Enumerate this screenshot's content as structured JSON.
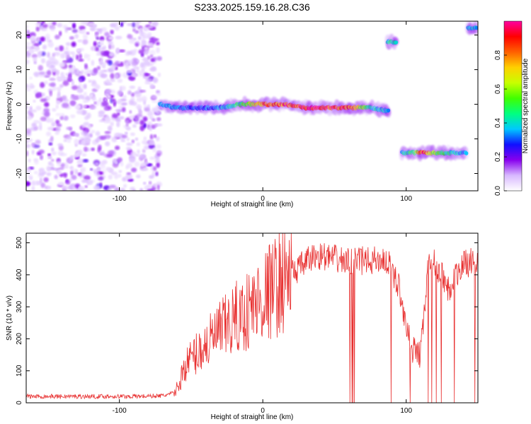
{
  "title": "S233.2025.159.16.28.C36",
  "chart_data": [
    {
      "type": "heatmap",
      "title": "S233.2025.159.16.28.C36",
      "xlabel": "Height of straight line (km)",
      "ylabel": "Frequency (Hz)",
      "xlim": [
        -165,
        150
      ],
      "ylim": [
        -25,
        24
      ],
      "xticks": [
        -100,
        0,
        100
      ],
      "yticks": [
        -20,
        -10,
        0,
        10,
        20
      ],
      "colorbar": {
        "label": "Normalized spectral amplitude",
        "range": [
          0,
          1
        ],
        "ticks": [
          0.0,
          0.2,
          0.4,
          0.6,
          0.8
        ],
        "tick_labels": [
          "0.0",
          "0.2",
          "0.4",
          "0.6",
          "0.8"
        ],
        "colormap": [
          "#ffffff",
          "#d8b8ff",
          "#8800ee",
          "#1010ff",
          "#00c8ff",
          "#00ff80",
          "#40ff00",
          "#c8ff00",
          "#ffd000",
          "#ff6000",
          "#ff0000",
          "#ff00a0"
        ]
      },
      "features": [
        {
          "name": "noise",
          "x_range": [
            -165,
            -72
          ],
          "freq_range": [
            -25,
            24
          ],
          "amplitude": 0.2
        },
        {
          "name": "main-track",
          "x": [
            -72,
            -60,
            -45,
            -30,
            -15,
            0,
            15,
            30,
            45,
            60,
            75,
            88
          ],
          "freq": [
            0,
            -1,
            -1,
            -1,
            0,
            0,
            0,
            -1,
            -1,
            -1,
            -1,
            -2
          ],
          "amplitude": [
            0.4,
            0.35,
            0.3,
            0.35,
            0.5,
            0.85,
            0.9,
            0.95,
            0.95,
            0.9,
            0.4,
            0.4
          ]
        },
        {
          "name": "high-blob",
          "x": [
            90
          ],
          "freq": [
            18
          ],
          "amplitude": 0.45
        },
        {
          "name": "low-track",
          "x": [
            97,
            105,
            112,
            120,
            130,
            142
          ],
          "freq": [
            -14,
            -14,
            -14,
            -14,
            -14,
            -14
          ],
          "amplitude": [
            0.4,
            0.5,
            0.9,
            0.6,
            0.45,
            0.35
          ]
        },
        {
          "name": "right-edge",
          "x": [
            146
          ],
          "freq": [
            22
          ],
          "amplitude": 0.4
        }
      ]
    },
    {
      "type": "line",
      "xlabel": "Height of straight line (km)",
      "ylabel": "SNR (10 * v/v)",
      "xlim": [
        -165,
        150
      ],
      "ylim": [
        0,
        530
      ],
      "xticks": [
        -100,
        0,
        100
      ],
      "yticks": [
        0,
        100,
        200,
        300,
        400,
        500
      ],
      "color": "#e83030",
      "x": [
        -165,
        -150,
        -130,
        -110,
        -90,
        -70,
        -62,
        -58,
        -55,
        -50,
        -45,
        -40,
        -35,
        -30,
        -25,
        -20,
        -15,
        -10,
        -5,
        0,
        5,
        10,
        15,
        20,
        25,
        30,
        35,
        40,
        45,
        50,
        55,
        60,
        65,
        70,
        75,
        80,
        85,
        90,
        95,
        100,
        103,
        106,
        110,
        115,
        120,
        125,
        130,
        135,
        140,
        145,
        150
      ],
      "y": [
        20,
        20,
        20,
        20,
        20,
        22,
        30,
        60,
        110,
        140,
        160,
        180,
        200,
        220,
        240,
        260,
        270,
        290,
        310,
        330,
        350,
        370,
        390,
        405,
        420,
        440,
        455,
        460,
        455,
        450,
        445,
        440,
        440,
        445,
        440,
        450,
        445,
        420,
        360,
        250,
        180,
        160,
        150,
        420,
        440,
        400,
        350,
        400,
        430,
        440,
        440
      ]
    }
  ]
}
